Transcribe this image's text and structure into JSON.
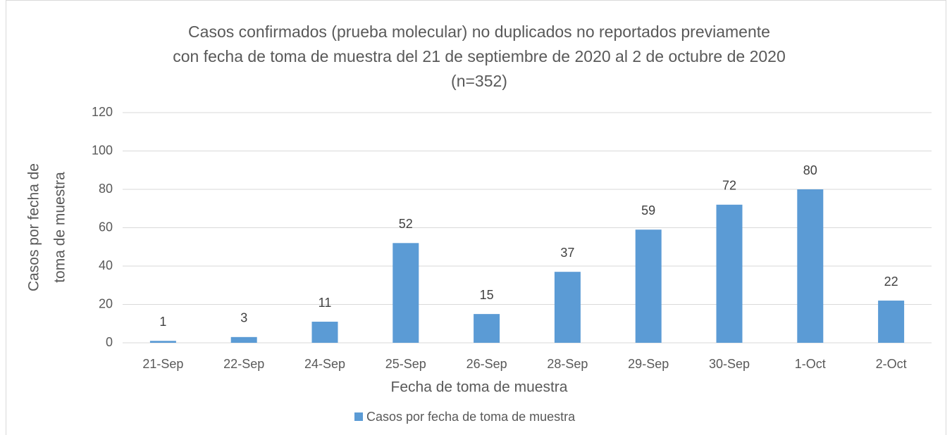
{
  "chart_data": {
    "type": "bar",
    "title": [
      "Casos confirmados (prueba molecular) no duplicados no reportados previamente",
      "con fecha de toma de muestra del 21 de septiembre de 2020 al 2 de octubre de 2020",
      "(n=352)"
    ],
    "x_label": "Fecha de toma de muestra",
    "y_label": [
      "Casos por fecha de",
      "toma de muestra"
    ],
    "categories": [
      "21-Sep",
      "22-Sep",
      "24-Sep",
      "25-Sep",
      "26-Sep",
      "28-Sep",
      "29-Sep",
      "30-Sep",
      "1-Oct",
      "2-Oct"
    ],
    "series": [
      {
        "name": "Casos por fecha de toma de muestra",
        "color": "#5b9bd5",
        "values": [
          1,
          3,
          11,
          52,
          15,
          37,
          59,
          72,
          80,
          22
        ]
      }
    ],
    "ylim": [
      0,
      120
    ],
    "yticks": [
      0,
      20,
      40,
      60,
      80,
      100,
      120
    ],
    "grid": true,
    "legend": "bottom"
  }
}
